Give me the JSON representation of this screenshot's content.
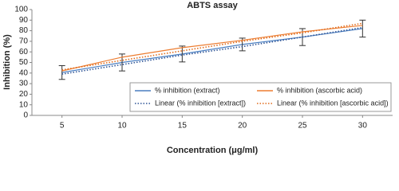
{
  "chart_data": {
    "type": "line",
    "title": "ABTS assay",
    "x_label": "Concentration (μg/ml)",
    "y_label": "Inhibition (%)",
    "x": [
      5,
      10,
      15,
      20,
      25,
      30
    ],
    "xlim": [
      2.5,
      32.5
    ],
    "xticks": [
      5,
      10,
      15,
      20,
      25,
      30
    ],
    "ylim": [
      0,
      100
    ],
    "yticks": [
      0,
      10,
      20,
      30,
      40,
      50,
      60,
      70,
      80,
      90,
      100
    ],
    "grid": false,
    "legend": "lower right",
    "series": [
      {
        "name": "% inhibition (extract)",
        "color": "#4a7fc1",
        "line_style": "solid",
        "values": [
          40.5,
          50,
          58,
          67,
          74,
          82
        ],
        "errors": [
          6.5,
          8,
          7.5,
          6,
          8,
          8
        ]
      },
      {
        "name": "% inhibition (ascorbic acid)",
        "color": "#ed7d31",
        "line_style": "solid",
        "values": [
          42,
          55,
          64,
          71,
          79,
          85
        ]
      },
      {
        "name": "Linear (% inhibition [extract])",
        "color": "#2f5597",
        "line_style": "dotted",
        "values": [
          39,
          48,
          57,
          65,
          74,
          83
        ]
      },
      {
        "name": "Linear (% inhibition [ascorbic acid])",
        "color": "#e06a1a",
        "line_style": "dotted",
        "values": [
          43,
          52,
          61,
          70,
          78,
          87
        ]
      }
    ]
  }
}
